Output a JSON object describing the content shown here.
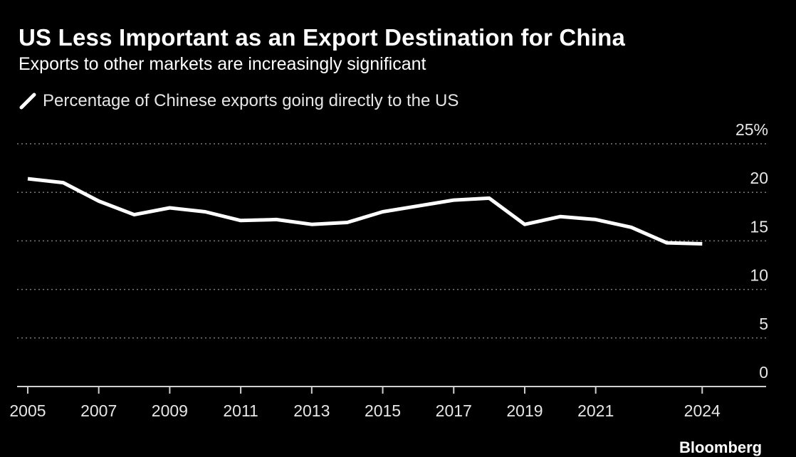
{
  "header": {
    "title": "US Less Important as an Export Destination for China",
    "subtitle": "Exports to other markets are increasingly significant"
  },
  "colors": {
    "background": "#000000",
    "line": "#ffffff",
    "grid": "#7a7a7a",
    "text": "#e6e6e6"
  },
  "source": {
    "label": "Bloomberg"
  },
  "chart_data": {
    "type": "line",
    "x_tick_labels": [
      "2005",
      "2007",
      "2009",
      "2011",
      "2013",
      "2015",
      "2017",
      "2019",
      "2021",
      "2024"
    ],
    "y_tick_labels": [
      "25%",
      "20",
      "15",
      "10",
      "5",
      "0"
    ],
    "ylim": [
      0,
      25
    ],
    "xlim": [
      2004.7,
      2025.8
    ],
    "grid": true,
    "grid_style": "dotted horizontal",
    "legend_placement": "top-left",
    "y_axis_side": "right",
    "series": [
      {
        "name": "Percentage of Chinese exports going directly to the US",
        "color": "#ffffff",
        "x": [
          2005,
          2006,
          2007,
          2008,
          2009,
          2010,
          2011,
          2012,
          2013,
          2014,
          2015,
          2016,
          2017,
          2018,
          2019,
          2020,
          2021,
          2022,
          2023,
          2024
        ],
        "values": [
          21.4,
          21.0,
          19.1,
          17.7,
          18.4,
          18.0,
          17.1,
          17.2,
          16.7,
          16.9,
          18.0,
          18.6,
          19.2,
          19.4,
          16.7,
          17.5,
          17.2,
          16.4,
          14.8,
          14.7
        ]
      }
    ]
  }
}
